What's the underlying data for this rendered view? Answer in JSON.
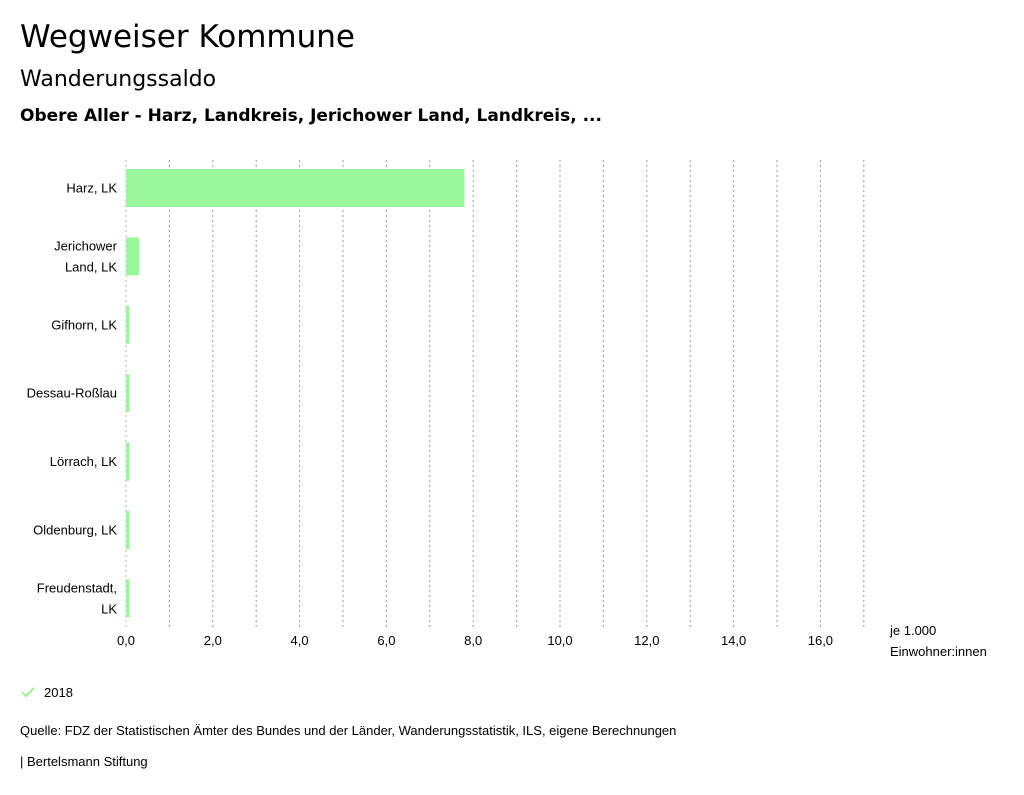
{
  "header": {
    "app_title": "Wegweiser Kommune",
    "subtitle": "Wanderungssaldo",
    "region_title": "Obere Aller - Harz, Landkreis, Jerichower Land, Landkreis, ..."
  },
  "chart_data": {
    "type": "bar",
    "orientation": "horizontal",
    "categories": [
      "Harz, LK",
      "Jerichower Land, LK",
      "Gifhorn, LK",
      "Dessau-Roßlau",
      "Lörrach, LK",
      "Oldenburg, LK",
      "Freudenstadt, LK"
    ],
    "category_lines": [
      [
        "Harz, LK"
      ],
      [
        "Jerichower",
        "Land, LK"
      ],
      [
        "Gifhorn, LK"
      ],
      [
        "Dessau-Roßlau"
      ],
      [
        "Lörrach, LK"
      ],
      [
        "Oldenburg, LK"
      ],
      [
        "Freudenstadt,",
        "LK"
      ]
    ],
    "series": [
      {
        "name": "2018",
        "values": [
          7.8,
          0.3,
          0.08,
          0.08,
          0.08,
          0.08,
          0.08
        ],
        "color": "#9bf79b"
      }
    ],
    "xlim": [
      0,
      17
    ],
    "xticks": [
      0,
      2,
      4,
      6,
      8,
      10,
      12,
      14,
      16
    ],
    "xtick_labels": [
      "0,0",
      "2,0",
      "4,0",
      "6,0",
      "8,0",
      "10,0",
      "12,0",
      "14,0",
      "16,0"
    ],
    "xlabel_lines": [
      "je 1.000",
      "Einwohner:innen"
    ],
    "grid_step": 1,
    "grid": true
  },
  "legend": {
    "label": "2018",
    "icon": "check-icon",
    "color": "#9bf79b"
  },
  "footer": {
    "source": "Quelle: FDZ der Statistischen Ämter des Bundes und der Länder, Wanderungsstatistik, ILS, eigene Berechnungen",
    "brand": "| Bertelsmann Stiftung"
  }
}
